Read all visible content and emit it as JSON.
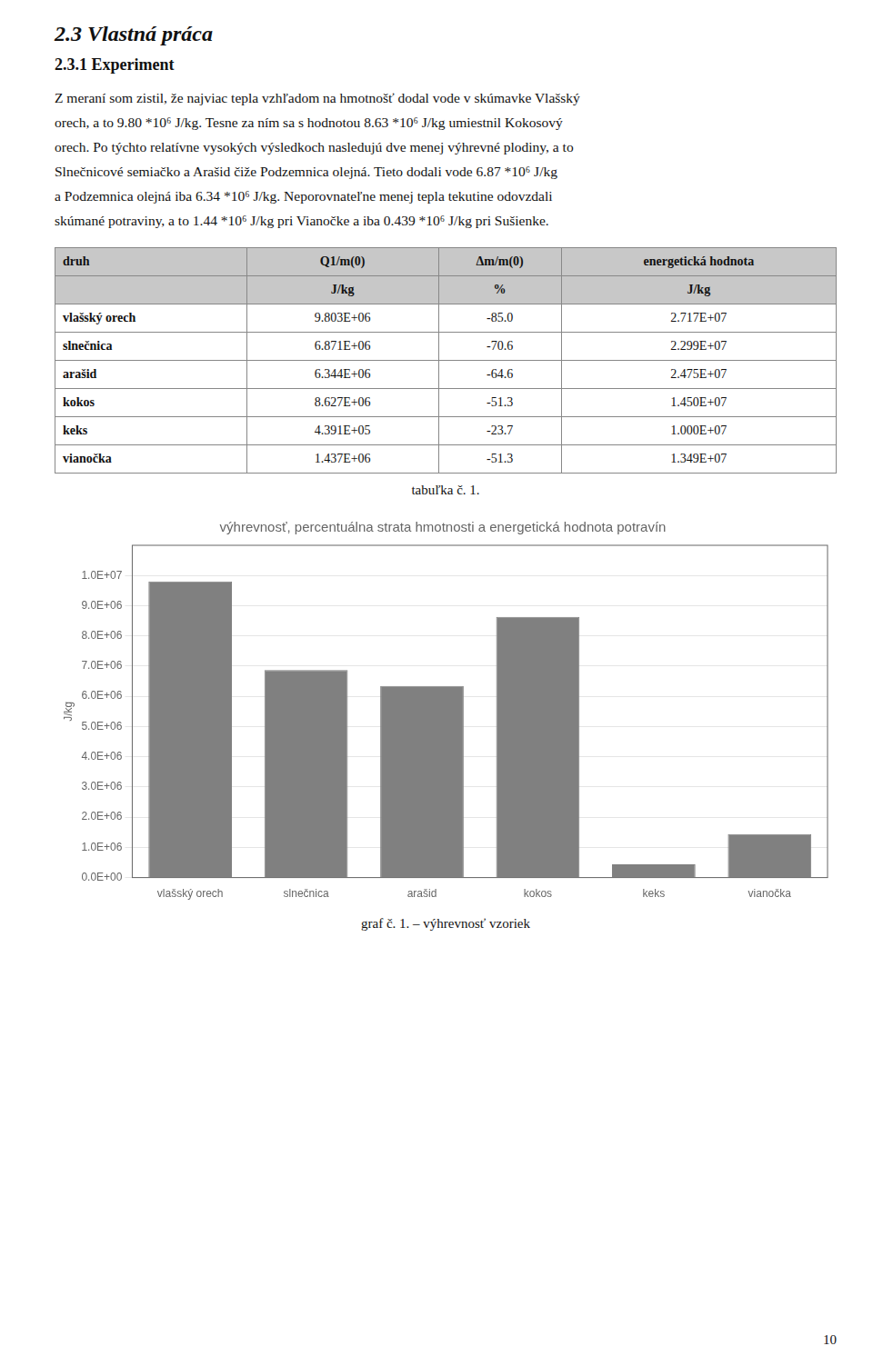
{
  "title": "2.3  Vlastná práca",
  "subtitle": "2.3.1  Experiment",
  "body_text_lines": [
    "Z meraní som zistil, že najviac tepla vzhľadom na hmotnošť dodal vode v skúmavke Vlašský",
    "orech, a to 9.80 *10⁶ J/kg. Tesne za ním sa s hodnotou 8.63 *10⁶ J/kg umiestnil Kokosový",
    "orech. Po týchto relatívne vysokých výsledkoch nasledujú dve menej výhrevné plodiny, a to",
    "Slnečnicové semiačko a Arašid čiže Podzemnica olejná. Tieto dodali vode 6.87 *10⁶ J/kg",
    "a Podzemnica olejná iba 6.34 *10⁶ J/kg. Neporovnateľne menej tepla tekutine odovzdali",
    "skúmané potraviny, a to 1.44 *10⁶ J/kg pri Vianočke a iba 0.439 *10⁶ J/kg pri Sušienke."
  ],
  "table": {
    "headers": [
      "druh",
      "Q1/m(0)",
      "Δm/m(0)",
      "energetická hodnota"
    ],
    "subheaders": [
      "",
      "J/kg",
      "%",
      "J/kg"
    ],
    "rows": [
      [
        "vlašský orech",
        "9.803E+06",
        "-85.0",
        "2.717E+07"
      ],
      [
        "slnečnica",
        "6.871E+06",
        "-70.6",
        "2.299E+07"
      ],
      [
        "arašid",
        "6.344E+06",
        "-64.6",
        "2.475E+07"
      ],
      [
        "kokos",
        "8.627E+06",
        "-51.3",
        "1.450E+07"
      ],
      [
        "keks",
        "4.391E+05",
        "-23.7",
        "1.000E+07"
      ],
      [
        "vianočka",
        "1.437E+06",
        "-51.3",
        "1.349E+07"
      ]
    ],
    "caption": "tabuľka č. 1."
  },
  "chart_caption": "graf č. 1. – výhrevnosť vzoriek",
  "page_number": "10",
  "chart_data": {
    "type": "bar",
    "title": "výhrevnosť, percentuálna strata hmotnosti a energetická hodnota potravín",
    "categories": [
      "vlašský orech",
      "slnečnica",
      "arašid",
      "kokos",
      "keks",
      "vianočka"
    ],
    "values": [
      9803000,
      6871000,
      6344000,
      8627000,
      439100,
      1437000
    ],
    "color": "#808080",
    "ylabel": "J/kg",
    "ylim": [
      0,
      11000000
    ],
    "yticks": [
      {
        "value": 0,
        "label": "0.0E+00"
      },
      {
        "value": 1000000,
        "label": "1.0E+06"
      },
      {
        "value": 2000000,
        "label": "2.0E+06"
      },
      {
        "value": 3000000,
        "label": "3.0E+06"
      },
      {
        "value": 4000000,
        "label": "4.0E+06"
      },
      {
        "value": 5000000,
        "label": "5.0E+06"
      },
      {
        "value": 6000000,
        "label": "6.0E+06"
      },
      {
        "value": 7000000,
        "label": "7.0E+06"
      },
      {
        "value": 8000000,
        "label": "8.0E+06"
      },
      {
        "value": 9000000,
        "label": "9.0E+06"
      },
      {
        "value": 10000000,
        "label": "1.0E+07"
      }
    ],
    "grid": true
  }
}
